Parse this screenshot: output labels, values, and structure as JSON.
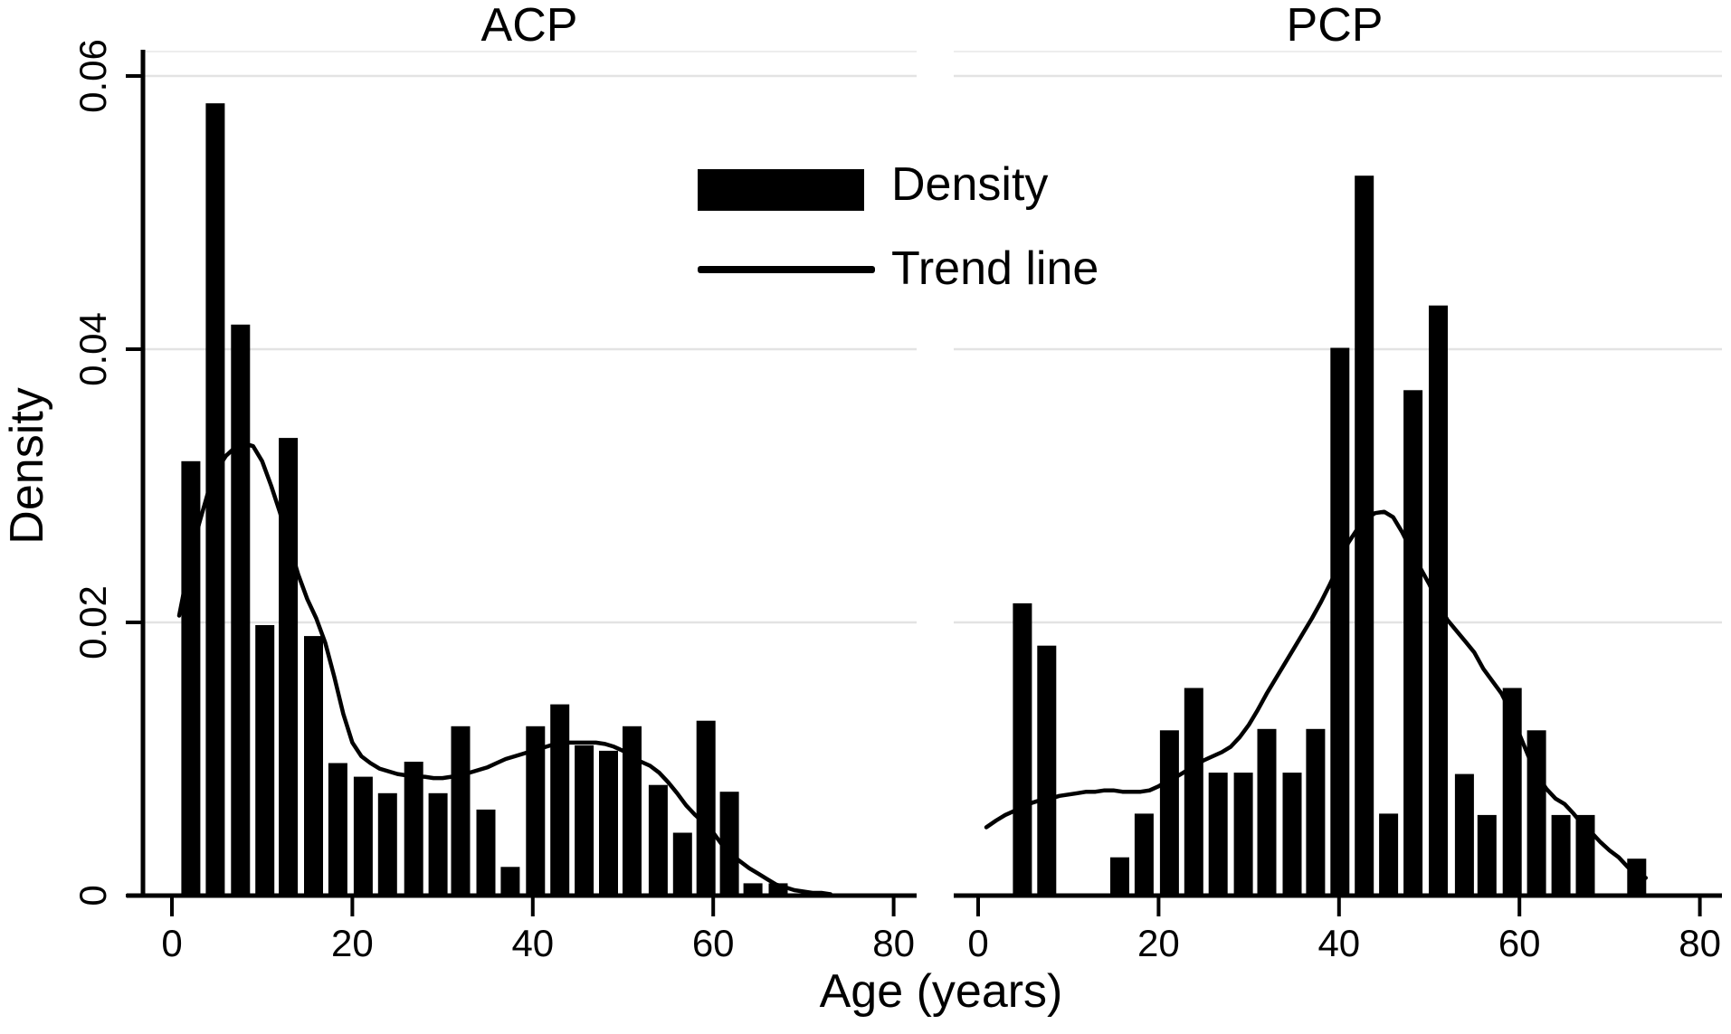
{
  "figure": {
    "x_axis_label": "Age (years)",
    "y_axis_label": "Density",
    "y_ticks": [
      0,
      0.02,
      0.04,
      0.06
    ],
    "y_tick_labels": [
      "0",
      "0.02",
      "0.04",
      "0.06"
    ],
    "x_ticks": [
      0,
      20,
      40,
      60,
      80
    ],
    "x_tick_labels": [
      "0",
      "20",
      "40",
      "60",
      "80"
    ],
    "legend": [
      {
        "swatch": "filled-bar",
        "label": "Density"
      },
      {
        "swatch": "line",
        "label": "Trend line"
      }
    ],
    "colors": {
      "bar": "#000000",
      "trend_line": "#000000",
      "axis": "#000000",
      "grid": "#e3e3e3",
      "plot_top_border": "#ededed",
      "background": "#ffffff",
      "text": "#000000"
    }
  },
  "chart_data": [
    {
      "panel": "left",
      "title": "ACP",
      "type": "bar",
      "overlay": "line",
      "xlabel": "Age (years)",
      "ylabel": "Density",
      "xlim": [
        -3.2,
        82.6
      ],
      "ylim": [
        0,
        0.0618
      ],
      "grid": "horizontal",
      "bar_width_years": 2.1,
      "bars": {
        "centers": [
          2.1,
          4.8,
          7.6,
          10.3,
          12.9,
          15.7,
          18.4,
          21.2,
          23.9,
          26.8,
          29.5,
          32.0,
          34.8,
          37.5,
          40.3,
          43.0,
          45.7,
          48.4,
          51.0,
          53.9,
          56.6,
          59.2,
          61.8,
          64.4,
          67.2
        ],
        "values": [
          0.0318,
          0.058,
          0.0418,
          0.0198,
          0.0335,
          0.019,
          0.0097,
          0.0087,
          0.0075,
          0.0098,
          0.0075,
          0.0124,
          0.0063,
          0.0021,
          0.0124,
          0.014,
          0.011,
          0.0106,
          0.0124,
          0.0081,
          0.0046,
          0.0128,
          0.0076,
          0.0009,
          0.0009
        ]
      },
      "trend_line": {
        "x": [
          0.8,
          2,
          3,
          4,
          5,
          6,
          7,
          8,
          9,
          10,
          11,
          12,
          13,
          14,
          15,
          16,
          17,
          18,
          19,
          20,
          21,
          22,
          23,
          24,
          25,
          26,
          27,
          28,
          29,
          30,
          31,
          32,
          33,
          34,
          35,
          36,
          37,
          38,
          39,
          40,
          41,
          42,
          43,
          44,
          45,
          46,
          47,
          48,
          49,
          50,
          51,
          52,
          53,
          54,
          55,
          56,
          57,
          58,
          59,
          60,
          61,
          62,
          63,
          64,
          65,
          66,
          67,
          68,
          69,
          70,
          71,
          72,
          73
        ],
        "y": [
          0.0205,
          0.0245,
          0.0272,
          0.0295,
          0.0312,
          0.0322,
          0.0328,
          0.0331,
          0.0329,
          0.0318,
          0.03,
          0.028,
          0.0257,
          0.0235,
          0.0217,
          0.0203,
          0.0185,
          0.016,
          0.0133,
          0.0112,
          0.0102,
          0.0097,
          0.0093,
          0.0091,
          0.0089,
          0.0088,
          0.0087,
          0.0087,
          0.0086,
          0.0086,
          0.0087,
          0.0088,
          0.009,
          0.0092,
          0.0094,
          0.0097,
          0.01,
          0.0102,
          0.0104,
          0.0106,
          0.0108,
          0.011,
          0.0111,
          0.0112,
          0.0112,
          0.0112,
          0.0112,
          0.0111,
          0.0109,
          0.0106,
          0.0102,
          0.0098,
          0.0095,
          0.009,
          0.0083,
          0.0075,
          0.0066,
          0.0059,
          0.0053,
          0.0046,
          0.0037,
          0.003,
          0.0025,
          0.002,
          0.0016,
          0.0012,
          0.0008,
          0.0006,
          0.0004,
          0.0003,
          0.0002,
          0.0002,
          0.0001
        ]
      }
    },
    {
      "panel": "right",
      "title": "PCP",
      "type": "bar",
      "overlay": "line",
      "xlabel": "Age (years)",
      "ylabel": "Density",
      "xlim": [
        -2.7,
        82.4
      ],
      "ylim": [
        0,
        0.0618
      ],
      "grid": "horizontal",
      "bar_width_years": 2.1,
      "bars": {
        "centers": [
          4.9,
          7.6,
          15.7,
          18.4,
          21.2,
          23.9,
          26.6,
          29.4,
          32.0,
          34.8,
          37.4,
          40.1,
          42.8,
          45.5,
          48.2,
          51.0,
          53.9,
          56.4,
          59.2,
          61.9,
          64.6,
          67.3,
          73.0
        ],
        "values": [
          0.0214,
          0.0183,
          0.0028,
          0.006,
          0.0121,
          0.0152,
          0.009,
          0.009,
          0.0122,
          0.009,
          0.0122,
          0.0401,
          0.0527,
          0.006,
          0.037,
          0.0432,
          0.0089,
          0.0059,
          0.0152,
          0.0121,
          0.0059,
          0.0059,
          0.0027
        ]
      },
      "trend_line": {
        "x": [
          0.9,
          2,
          3,
          4,
          5,
          6,
          7,
          8,
          9,
          10,
          11,
          12,
          13,
          14,
          15,
          16,
          17,
          18,
          19,
          20,
          21,
          22,
          23,
          24,
          25,
          26,
          27,
          28,
          29,
          30,
          31,
          32,
          33,
          34,
          35,
          36,
          37,
          38,
          39,
          40,
          41,
          42,
          43,
          44,
          45,
          46,
          47,
          48,
          49,
          50,
          51,
          52,
          53,
          54,
          55,
          56,
          57,
          58,
          59,
          60,
          61,
          62,
          63,
          64,
          65,
          66,
          67,
          68,
          69,
          70,
          71,
          72,
          73,
          74
        ],
        "y": [
          0.005,
          0.0055,
          0.0059,
          0.0062,
          0.0065,
          0.0068,
          0.007,
          0.0071,
          0.0073,
          0.0074,
          0.0075,
          0.0076,
          0.0076,
          0.0077,
          0.0077,
          0.0076,
          0.0076,
          0.0076,
          0.0077,
          0.008,
          0.0084,
          0.0087,
          0.0091,
          0.0095,
          0.0099,
          0.0102,
          0.0105,
          0.0109,
          0.0116,
          0.0125,
          0.0136,
          0.0148,
          0.0159,
          0.017,
          0.0181,
          0.0192,
          0.0203,
          0.0215,
          0.0228,
          0.0242,
          0.0258,
          0.0268,
          0.0276,
          0.028,
          0.0281,
          0.0277,
          0.0266,
          0.0253,
          0.024,
          0.0228,
          0.0214,
          0.0202,
          0.0194,
          0.0186,
          0.0178,
          0.0166,
          0.0157,
          0.0148,
          0.0135,
          0.0118,
          0.0102,
          0.0088,
          0.0078,
          0.0071,
          0.0067,
          0.006,
          0.0052,
          0.0046,
          0.0039,
          0.0033,
          0.0028,
          0.0021,
          0.0015,
          0.0013
        ]
      }
    }
  ]
}
